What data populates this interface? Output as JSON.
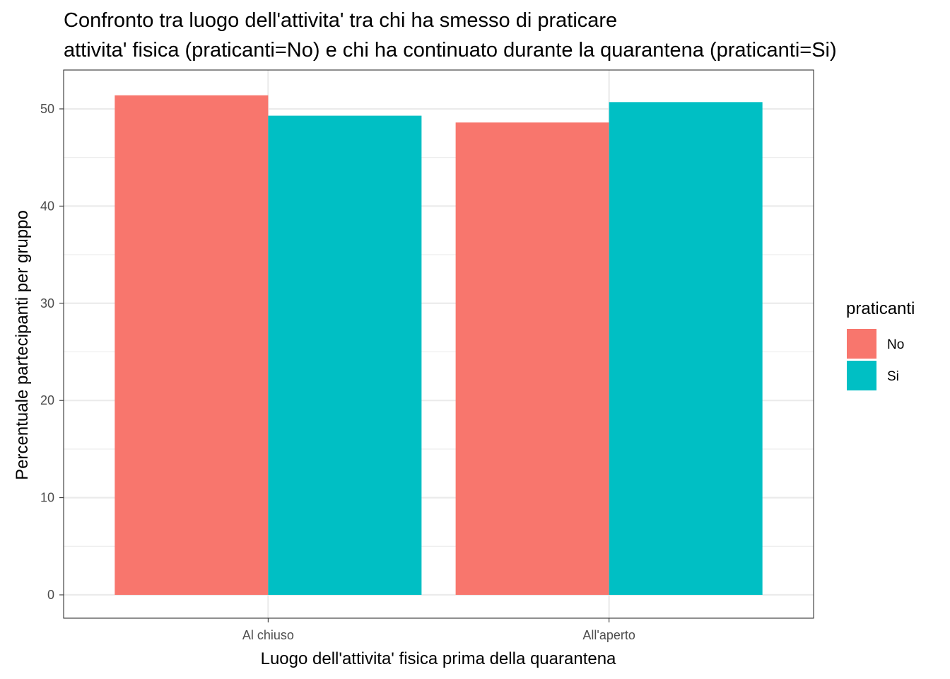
{
  "chart_data": {
    "type": "bar",
    "title": "Confronto tra luogo dell'attivita' tra chi ha smesso di praticare",
    "subtitle": "attivita' fisica (praticanti=No) e chi ha continuato durante la quarantena (praticanti=Si)",
    "xlabel": "Luogo dell'attivita' fisica prima della quarantena",
    "ylabel": "Percentuale partecipanti per gruppo",
    "categories": [
      "Al chiuso",
      "All'aperto"
    ],
    "series": [
      {
        "name": "No",
        "values": [
          51.4,
          48.6
        ],
        "color": "#F8766D"
      },
      {
        "name": "Si",
        "values": [
          49.3,
          50.7
        ],
        "color": "#00BFC4"
      }
    ],
    "ylim": [
      -2.4,
      54.0
    ],
    "yticks": [
      0,
      10,
      20,
      30,
      40,
      50
    ],
    "yticks_labels": [
      "0",
      "10",
      "20",
      "30",
      "40",
      "50"
    ],
    "grid": true,
    "legend": {
      "title": "praticanti",
      "position": "right",
      "entries": [
        "No",
        "Si"
      ]
    }
  }
}
